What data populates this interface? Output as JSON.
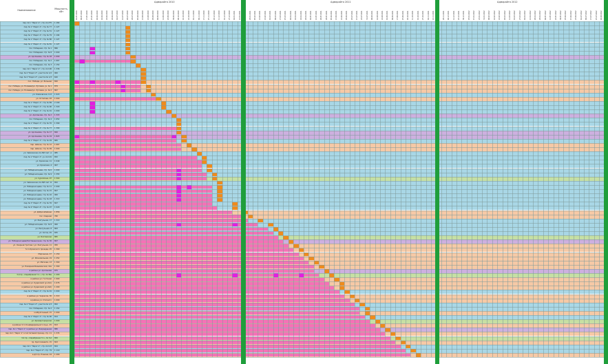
{
  "header": {
    "name_col": "Наименование",
    "power_col": "Мощность, кВт",
    "years": [
      "Адмирайтя 2010",
      "Адмирайтя 2011",
      "Адмирайтя 2012"
    ]
  },
  "dates": [
    "01.05.2010",
    "09.05.2010",
    "17.05.2010",
    "25.05.2010",
    "02.06.2010",
    "10.06.2010",
    "18.06.2010",
    "26.06.2010",
    "04.07.2010",
    "12.07.2010",
    "20.07.2010",
    "28.07.2010",
    "05.08.2010",
    "13.08.2010",
    "21.08.2010",
    "29.08.2010",
    "06.09.2010",
    "14.09.2010",
    "22.09.2010",
    "30.09.2010",
    "08.10.2010",
    "16.10.2010",
    "24.10.2010",
    "01.11.2010",
    "09.11.2010",
    "17.11.2010",
    "25.11.2010",
    "03.12.2010",
    "11.12.2010",
    "19.12.2010",
    "27.12.2010",
    "04.01.2011",
    "12.01.2011",
    "20.01.2011",
    "28.01.2011",
    "05.02.2011",
    "13.02.2011",
    "21.02.2011",
    "01.03.2011",
    "09.03.2011",
    "17.03.2011",
    "25.03.2011",
    "02.04.2011",
    "10.04.2011",
    "18.04.2011",
    "26.04.2011",
    "04.05.2011",
    "12.05.2011",
    "20.05.2011",
    "28.05.2011",
    "05.06.2011",
    "13.06.2011",
    "21.06.2011",
    "29.06.2011",
    "07.07.2011",
    "15.07.2011",
    "23.07.2011",
    "31.07.2011",
    "08.08.2011",
    "16.08.2011",
    "24.08.2011",
    "01.09.2011",
    "09.09.2011",
    "17.09.2011",
    "25.09.2011",
    "03.10.2011",
    "11.10.2011",
    "19.10.2011",
    "27.10.2011",
    "04.11.2011",
    "12.11.2011",
    "20.11.2011",
    "28.11.2011",
    "06.12.2011",
    "14.12.2011",
    "22.12.2011",
    "30.12.2011",
    "07.01.2012",
    "15.01.2012",
    "23.01.2012",
    "31.01.2012",
    "08.02.2012",
    "16.02.2012",
    "24.02.2012",
    "03.03.2012",
    "11.03.2012",
    "19.03.2012",
    "27.03.2012",
    "04.04.2012",
    "12.04.2012",
    "20.04.2012",
    "28.04.2012",
    "06.05.2012",
    "14.05.2012",
    "22.05.2012",
    "30.05.2012",
    "07.06.2012",
    "15.06.2012",
    "23.06.2012",
    "01.07.2012",
    "09.07.2012",
    "17.07.2012",
    "25.07.2012",
    "02.08.2012",
    "10.08.2012",
    "18.08.2012",
    "26.08.2012",
    "03.09.2012",
    "11.09.2012",
    "19.09.2012",
    "27.09.2012"
  ],
  "rows": [
    {
      "name": "пер. № 1 \"Ларог-1\", стр. № 275",
      "power": "1 182",
      "color": "#a9d7e6"
    },
    {
      "name": "пер. № 1 \"Ларог-1\", стр. № 77",
      "power": "1 127",
      "color": "#a9d7e6"
    },
    {
      "name": "пер. № 1 \"Ларог-1\", стр. № 51",
      "power": "1 127",
      "color": "#a9d7e6"
    },
    {
      "name": "пер. № 1 \"Ларог-1\", стр. № 79",
      "power": "1 194",
      "color": "#a9d7e6"
    },
    {
      "name": "пер. № 1 \"Ларог-1\", стр. № 80",
      "power": "1 127",
      "color": "#a9d7e6"
    },
    {
      "name": "пер. № 1 \"Ларог-1\", стр. № 81",
      "power": "1 127",
      "color": "#a9d7e6"
    },
    {
      "name": "пос. Победная, стр. № 1",
      "power": "866",
      "color": "#a9d7e6"
    },
    {
      "name": "пос. Победная, стр. № 8",
      "power": "1 000",
      "color": "#a9d7e6"
    },
    {
      "name": "ул. Арсланова, стр. № 18",
      "power": "1 000",
      "color": "#cdb0df"
    },
    {
      "name": "пос. Победная, стр. № 2",
      "power": "1 667",
      "color": "#a9d7e6"
    },
    {
      "name": "пос. Победная, стр. № 3",
      "power": "1 152",
      "color": "#a9d7e6"
    },
    {
      "name": "пер. № 1 \"Ларог-1\", стр. № 100",
      "power": "1 336",
      "color": "#a9d7e6"
    },
    {
      "name": "пер. № 2 \"Ларог-2\", участок № 1/2",
      "power": "900",
      "color": "#a9d7e6"
    },
    {
      "name": "пер. № 2 \"Ларог-2\", участок № 1/3",
      "power": "620",
      "color": "#a9d7e6"
    },
    {
      "name": "пос. Победа, ул. Больная",
      "power": "820",
      "color": "#f6c9a6"
    },
    {
      "name": "пос. Победа, ул. Полевая/ул. Луговая, уч. № 1",
      "power": "879",
      "color": "#f6c9a6"
    },
    {
      "name": "пос. Победа, ул. Полевая/ул. Луговая, уч. № 2",
      "power": "867",
      "color": "#f6c9a6"
    },
    {
      "name": "ул. Климовская, 113",
      "power": "1 915",
      "color": "#a9d7e6"
    },
    {
      "name": "ул. Остапова, 93",
      "power": "1 000",
      "color": "#f6c9a6"
    },
    {
      "name": "пер. № 1 \"Ларог-1\", стр. № 89",
      "power": "2 190",
      "color": "#a9d7e6"
    },
    {
      "name": "пер. № 1 \"Ларог-1\", стр. № 90",
      "power": "1 320",
      "color": "#a9d7e6"
    },
    {
      "name": "пер. № 1 \"Ларог-1\", стр. № 91",
      "power": "1 000",
      "color": "#a9d7e6"
    },
    {
      "name": "ул. Арсланова, стр. № 2",
      "power": "1 315",
      "color": "#cdb0df"
    },
    {
      "name": "пос. Победная, стр. № 4",
      "power": "1 652",
      "color": "#a9d7e6"
    },
    {
      "name": "пер. № 1 \"Ларог-1\", стр. № 70",
      "power": "1 390",
      "color": "#a9d7e6"
    },
    {
      "name": "пер. № 1 \"Ларог-1\", стр. № 77",
      "power": "1 390",
      "color": "#a9d7e6"
    },
    {
      "name": "ул. Арсланова, стр. № 17",
      "power": "820",
      "color": "#cdb0df"
    },
    {
      "name": "ул. Арсланова, стр. № 19",
      "power": "1 823",
      "color": "#cdb0df"
    },
    {
      "name": "пер. № 1 \"Ларог-1\", стр. № 29",
      "power": "865",
      "color": "#a9d7e6"
    },
    {
      "name": "пер. Шлюза, стр. № 12",
      "power": "1 667",
      "color": "#f6c9a6"
    },
    {
      "name": "пер. Шлюза, стр. № 99",
      "power": "1 000",
      "color": "#f6c9a6"
    },
    {
      "name": "ул. Чайковская, № 28/3 лит. А",
      "power": "985",
      "color": "#a9d7e6"
    },
    {
      "name": "пер. № 1 \"Ларог-1\", уч. № 101",
      "power": "832",
      "color": "#a9d7e6"
    },
    {
      "name": "ул. Кромская, 11",
      "power": "1 049",
      "color": "#a9d7e6"
    },
    {
      "name": "ул. Кромская, 4",
      "power": "907",
      "color": "#a9d7e6"
    },
    {
      "name": "ул. Победоносцева, стр. № 6",
      "power": "1 000",
      "color": "#a9d7e6"
    },
    {
      "name": "ул. Победоносцева, стр. № 9",
      "power": "1 355",
      "color": "#a9d7e6"
    },
    {
      "name": "ул. Сураплина, 97",
      "power": "1 500",
      "color": "#c6e0a4"
    },
    {
      "name": "ул. Чайковская, № 28/5 лит. Б",
      "power": "852",
      "color": "#a9d7e6"
    },
    {
      "name": "ул. Победоносцева, стр. № 11",
      "power": "1 000",
      "color": "#a9d7e6"
    },
    {
      "name": "ул. Победоносцева, стр. № 15",
      "power": "807",
      "color": "#a9d7e6"
    },
    {
      "name": "ул. Победоносцева, стр. № 16",
      "power": "900",
      "color": "#a9d7e6"
    },
    {
      "name": "ул. Победоносцева, стр. № 18",
      "power": "1 313",
      "color": "#a9d7e6"
    },
    {
      "name": "пер. № 3 \"Ларог-3\", стр. № 76",
      "power": "827",
      "color": "#a9d7e6"
    },
    {
      "name": "пер. № 4 \"Ларог-4\", стр. № 97",
      "power": "1 020",
      "color": "#a9d7e6"
    },
    {
      "name": "ул. Добросебейная",
      "power": "1 856",
      "color": "#f6c9a6"
    },
    {
      "name": "пос. Озерная",
      "power": "760",
      "color": "#f6c9a6"
    },
    {
      "name": "ул. Разгульная, 17",
      "power": "1 313",
      "color": "#a9d7e6"
    },
    {
      "name": "ул. Победоносцева, стр. № 8",
      "power": "900",
      "color": "#a9d7e6"
    },
    {
      "name": "ул. Разгульная, 8",
      "power": "863",
      "color": "#a9d7e6"
    },
    {
      "name": "ул. Котла, 45",
      "power": "835",
      "color": "#a9d7e6"
    },
    {
      "name": "ул. Болтавская",
      "power": "865",
      "color": "#c6e0a4"
    },
    {
      "name": "ул. Победоносцева/Лиственничная, стр. № 30",
      "power": "807",
      "color": "#cdb0df"
    },
    {
      "name": "ул. Озерная Гротова / ул. Разгульная, 11",
      "power": "950",
      "color": "#f6c9a6"
    },
    {
      "name": "5-го Кромского проезда, 25",
      "power": "1 300",
      "color": "#f6c9a6"
    },
    {
      "name": "Мирошина, 47",
      "power": "1 150",
      "color": "#f6c9a6"
    },
    {
      "name": "ул. Изоновольная, 19",
      "power": "1 252",
      "color": "#f6c9a6"
    },
    {
      "name": "ул. Мягкова, 13",
      "power": "1 300",
      "color": "#f6c9a6"
    },
    {
      "name": "ул. Пахарная Безымянская, 14а",
      "power": "1 300",
      "color": "#f6c9a6"
    },
    {
      "name": "в районе ул. Арсланова",
      "power": "875",
      "color": "#cdb0df"
    },
    {
      "name": "3-й пр. «Серебряная Гл.», стр. № 36а",
      "power": "1 400",
      "color": "#c6e0a4"
    },
    {
      "name": "в районе ул. Гостиная",
      "power": "1 900",
      "color": "#f6c9a6"
    },
    {
      "name": "в районе ул. Кудасовой (уч.№1)",
      "power": "1 676",
      "color": "#f6c9a6"
    },
    {
      "name": "в районе ул. Кудасовой (уч.№2)",
      "power": "1 200",
      "color": "#f6c9a6"
    },
    {
      "name": "пер. № 1 \"Ларог-1\", стр. № 91",
      "power": "1 000",
      "color": "#a9d7e6"
    },
    {
      "name": "в районе ул. Черкесов, 30",
      "power": "1 313",
      "color": "#f6c9a6"
    },
    {
      "name": "в районе ул. Степного",
      "power": "1 000",
      "color": "#f6c9a6"
    },
    {
      "name": "пер. № 2 \"Ларог-2\", участок № 1/3",
      "power": "852",
      "color": "#a9d7e6"
    },
    {
      "name": "пос. Победная, стр. № 2",
      "power": "1 152",
      "color": "#a9d7e6"
    },
    {
      "name": "колБулгошный, 15",
      "power": "1 000",
      "color": "#f6c9a6"
    },
    {
      "name": "пер. № 1 \"Ларог-1\", стр. № 90",
      "power": "814",
      "color": "#a9d7e6"
    },
    {
      "name": "ул. Кромаргородская",
      "power": "1 000",
      "color": "#c6e0a4"
    },
    {
      "name": "в районе 3-го Конфедерального пр.д., 25",
      "power": "813",
      "color": "#f6c9a6"
    },
    {
      "name": "пер. № 1 \"Ларог-1\" в районе ул. Безрадушная",
      "power": "880",
      "color": "#cdb0df"
    },
    {
      "name": "пер. № 1 \"Ларог-1\" и 4-й Сетевой проезд, стр. 11",
      "power": "1 374",
      "color": "#f6c9a6"
    },
    {
      "name": "3-й пр. «Серебряная Гл.», № 3-й",
      "power": "800",
      "color": "#c6e0a4"
    },
    {
      "name": "пр. Кроголоваяти, 15",
      "power": "823",
      "color": "#f6c9a6"
    },
    {
      "name": "пер. № 1 \"Ларог-1\", стр. № 123",
      "power": "824",
      "color": "#a9d7e6"
    },
    {
      "name": "пер. № 2 \"Ларог-2\", стр. 79",
      "power": "1 110",
      "color": "#a9d7e6"
    },
    {
      "name": "в д/п пр. Рошина, 24",
      "power": "1 200",
      "color": "#f6c9a6"
    }
  ],
  "marks": [
    {
      "bar": [
        0,
        0
      ],
      "mag": [
        0
      ],
      "org": 0
    },
    {
      "bar": [
        0,
        0
      ],
      "mag": [],
      "org": 10
    },
    {
      "bar": [
        0,
        0
      ],
      "mag": [],
      "org": 10
    },
    {
      "bar": [
        0,
        0
      ],
      "mag": [],
      "org": 10
    },
    {
      "bar": [
        0,
        0
      ],
      "mag": [],
      "org": 10
    },
    {
      "bar": [
        0,
        0
      ],
      "mag": [],
      "org": 10
    },
    {
      "bar": [
        0,
        0
      ],
      "mag": [
        3
      ],
      "org": 10
    },
    {
      "bar": [
        0,
        0
      ],
      "mag": [
        3
      ],
      "org": 10
    },
    {
      "bar": [
        0,
        0
      ],
      "mag": [],
      "org": 11
    },
    {
      "bar": [
        0,
        11
      ],
      "mag": [
        1
      ],
      "org": 11
    },
    {
      "bar": [
        0,
        0
      ],
      "mag": [],
      "org": 12
    },
    {
      "bar": [
        0,
        0
      ],
      "mag": [],
      "org": 13
    },
    {
      "bar": [
        0,
        0
      ],
      "mag": [],
      "org": 13
    },
    {
      "bar": [
        0,
        0
      ],
      "mag": [],
      "org": 13
    },
    {
      "bar": [
        0,
        13
      ],
      "mag": [
        0,
        3,
        8
      ],
      "org": 13
    },
    {
      "bar": [
        0,
        13
      ],
      "mag": [
        9
      ],
      "org": 14
    },
    {
      "bar": [
        0,
        13
      ],
      "mag": [
        9
      ],
      "org": 14
    },
    {
      "bar": [
        0,
        0
      ],
      "mag": [],
      "org": 15
    },
    {
      "bar": [
        0,
        16
      ],
      "mag": [],
      "org": 16
    },
    {
      "bar": [
        0,
        0
      ],
      "mag": [
        3
      ],
      "org": 17
    },
    {
      "bar": [
        0,
        0
      ],
      "mag": [
        3
      ],
      "org": 17
    },
    {
      "bar": [
        0,
        0
      ],
      "mag": [
        3
      ],
      "org": 18
    },
    {
      "bar": [
        0,
        0
      ],
      "mag": [],
      "org": 19
    },
    {
      "bar": [
        0,
        0
      ],
      "mag": [],
      "org": 20
    },
    {
      "bar": [
        0,
        0
      ],
      "mag": [],
      "org": 20
    },
    {
      "bar": [
        0,
        20
      ],
      "mag": [],
      "org": 20
    },
    {
      "bar": [
        0,
        0
      ],
      "mag": [],
      "org": 20
    },
    {
      "bar": [
        0,
        19
      ],
      "mag": [
        0,
        19
      ],
      "org": 21
    },
    {
      "bar": [
        0,
        20
      ],
      "mag": [],
      "org": 21
    },
    {
      "bar": [
        0,
        21
      ],
      "mag": [],
      "org": 22
    },
    {
      "bar": [
        0,
        21
      ],
      "mag": [],
      "org": 23
    },
    {
      "bar": [
        0,
        0
      ],
      "mag": [],
      "org": 24
    },
    {
      "bar": [
        0,
        24
      ],
      "mag": [],
      "org": 25
    },
    {
      "bar": [
        0,
        25
      ],
      "mag": [],
      "org": 25
    },
    {
      "bar": [
        0,
        25
      ],
      "mag": [],
      "org": 26
    },
    {
      "bar": [
        0,
        25
      ],
      "mag": [
        20
      ],
      "org": 26
    },
    {
      "bar": [
        0,
        26
      ],
      "mag": [
        20
      ],
      "org": 27
    },
    {
      "bar": [
        0,
        26
      ],
      "mag": [
        20
      ],
      "org": 27
    },
    {
      "bar": [
        0,
        0
      ],
      "mag": [],
      "org": 28
    },
    {
      "bar": [
        0,
        27
      ],
      "mag": [
        20,
        22
      ],
      "org": 28
    },
    {
      "bar": [
        0,
        27
      ],
      "mag": [
        20
      ],
      "org": 28
    },
    {
      "bar": [
        0,
        27
      ],
      "mag": [
        20
      ],
      "org": 28
    },
    {
      "bar": [
        0,
        27
      ],
      "mag": [
        20
      ],
      "org": 28
    },
    {
      "bar": [
        0,
        27
      ],
      "mag": [],
      "org": 31
    },
    {
      "bar": [
        0,
        28
      ],
      "mag": [],
      "org": 31
    },
    {
      "bar": [
        0,
        31
      ],
      "mag": [],
      "org": 33
    },
    {
      "bar": [
        0,
        33
      ],
      "mag": [],
      "org": 34
    },
    {
      "bar": [
        0,
        34
      ],
      "mag": [],
      "org": 36
    },
    {
      "bar": [
        0,
        36
      ],
      "mag": [
        20,
        31
      ],
      "org": 38
    },
    {
      "bar": [
        0,
        38
      ],
      "mag": [],
      "org": 39
    },
    {
      "bar": [
        0,
        39
      ],
      "mag": [],
      "org": 40
    },
    {
      "bar": [
        0,
        40
      ],
      "mag": [],
      "org": 41
    },
    {
      "bar": [
        0,
        41
      ],
      "mag": [],
      "org": 42
    },
    {
      "bar": [
        0,
        42
      ],
      "mag": [],
      "org": 43
    },
    {
      "bar": [
        0,
        43
      ],
      "mag": [],
      "org": 44
    },
    {
      "bar": [
        0,
        44
      ],
      "mag": [],
      "org": 45
    },
    {
      "bar": [
        0,
        45
      ],
      "mag": [],
      "org": 46
    },
    {
      "bar": [
        0,
        46
      ],
      "mag": [],
      "org": 47
    },
    {
      "bar": [
        0,
        47
      ],
      "mag": [],
      "org": 48
    },
    {
      "bar": [
        0,
        47
      ],
      "mag": [],
      "org": 49
    },
    {
      "bar": [
        0,
        48
      ],
      "mag": [
        20,
        31,
        39,
        44
      ],
      "org": 50
    },
    {
      "bar": [
        0,
        49
      ],
      "mag": [],
      "org": 51
    },
    {
      "bar": [
        0,
        50
      ],
      "mag": [],
      "org": 52
    },
    {
      "bar": [
        0,
        51
      ],
      "mag": [],
      "org": 52
    },
    {
      "bar": [
        0,
        52
      ],
      "mag": [],
      "org": 53
    },
    {
      "bar": [
        0,
        53
      ],
      "mag": [],
      "org": 54
    },
    {
      "bar": [
        0,
        54
      ],
      "mag": [],
      "org": 55
    },
    {
      "bar": [
        0,
        55
      ],
      "mag": [],
      "org": 56
    },
    {
      "bar": [
        0,
        56
      ],
      "mag": [],
      "org": 57
    },
    {
      "bar": [
        0,
        56
      ],
      "mag": [],
      "org": 57
    },
    {
      "bar": [
        0,
        57
      ],
      "mag": [],
      "org": 58
    },
    {
      "bar": [
        0,
        58
      ],
      "mag": [],
      "org": 59
    },
    {
      "bar": [
        0,
        59
      ],
      "mag": [],
      "org": 60
    },
    {
      "bar": [
        0,
        60
      ],
      "mag": [],
      "org": 61
    },
    {
      "bar": [
        0,
        61
      ],
      "mag": [],
      "org": 62
    },
    {
      "bar": [
        0,
        62
      ],
      "mag": [],
      "org": 63
    },
    {
      "bar": [
        0,
        63
      ],
      "mag": [],
      "org": 64
    },
    {
      "bar": [
        0,
        64
      ],
      "mag": [],
      "org": 65
    },
    {
      "bar": [
        0,
        65
      ],
      "mag": [],
      "org": 66
    },
    {
      "bar": [
        0,
        66
      ],
      "mag": [],
      "org": 67
    }
  ]
}
